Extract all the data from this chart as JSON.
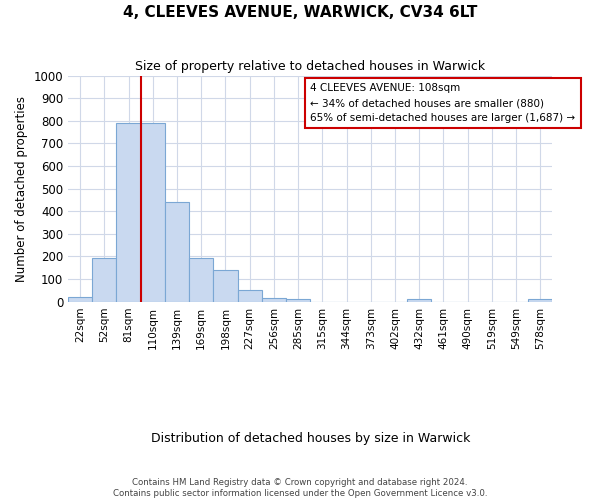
{
  "title": "4, CLEEVES AVENUE, WARWICK, CV34 6LT",
  "subtitle": "Size of property relative to detached houses in Warwick",
  "xlabel": "Distribution of detached houses by size in Warwick",
  "ylabel": "Number of detached properties",
  "bin_labels": [
    "22sqm",
    "52sqm",
    "81sqm",
    "110sqm",
    "139sqm",
    "169sqm",
    "198sqm",
    "227sqm",
    "256sqm",
    "285sqm",
    "315sqm",
    "344sqm",
    "373sqm",
    "402sqm",
    "432sqm",
    "461sqm",
    "490sqm",
    "519sqm",
    "549sqm",
    "578sqm"
  ],
  "bar_heights": [
    20,
    195,
    790,
    790,
    440,
    195,
    140,
    50,
    15,
    10,
    0,
    0,
    0,
    0,
    12,
    0,
    0,
    0,
    0,
    10
  ],
  "bar_color": "#c9d9f0",
  "bar_edge_color": "#7ba7d4",
  "vline_color": "#cc0000",
  "vline_x_index": 2.5,
  "annotation_line1": "4 CLEEVES AVENUE: 108sqm",
  "annotation_line2": "← 34% of detached houses are smaller (880)",
  "annotation_line3": "65% of semi-detached houses are larger (1,687) →",
  "annotation_box_color": "#ffffff",
  "annotation_box_edge": "#cc0000",
  "ylim": [
    0,
    1000
  ],
  "yticks": [
    0,
    100,
    200,
    300,
    400,
    500,
    600,
    700,
    800,
    900,
    1000
  ],
  "footer": "Contains HM Land Registry data © Crown copyright and database right 2024.\nContains public sector information licensed under the Open Government Licence v3.0.",
  "background_color": "#ffffff",
  "grid_color": "#d0d8e8"
}
